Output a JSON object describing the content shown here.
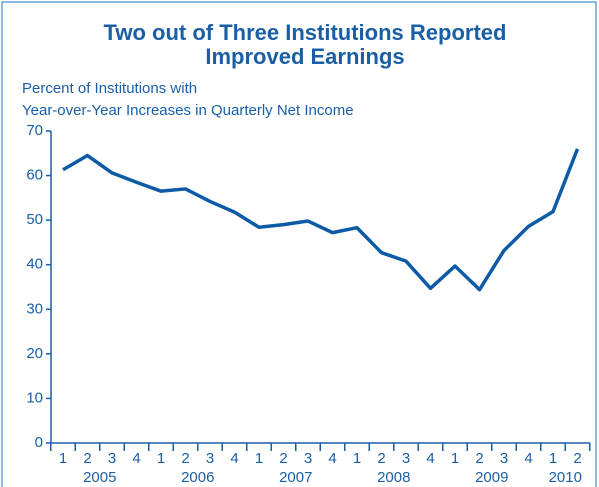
{
  "chart_data": {
    "type": "line",
    "title": [
      "Two out of Three Institutions Reported",
      "Improved Earnings"
    ],
    "y_label": [
      "Percent of Institutions with",
      "Year-over-Year Increases in Quarterly Net Income"
    ],
    "categories": [
      "1",
      "2",
      "3",
      "4",
      "1",
      "2",
      "3",
      "4",
      "1",
      "2",
      "3",
      "4",
      "1",
      "2",
      "3",
      "4",
      "1",
      "2",
      "3",
      "4",
      "1",
      "2"
    ],
    "years": [
      "2005",
      "2006",
      "2007",
      "2008",
      "2009",
      "2010"
    ],
    "series": [
      {
        "color": "#0d5aa7",
        "values": [
          61.3,
          64.5,
          60.6,
          58.5,
          56.5,
          57.0,
          54.2,
          51.8,
          48.4,
          49.0,
          49.8,
          47.2,
          48.3,
          42.7,
          40.8,
          34.7,
          39.7,
          34.4,
          43.2,
          48.6,
          51.9,
          66.0
        ]
      }
    ],
    "ylim": [
      0,
      70
    ],
    "yticks": [
      0,
      10,
      20,
      30,
      40,
      50,
      60,
      70
    ]
  }
}
